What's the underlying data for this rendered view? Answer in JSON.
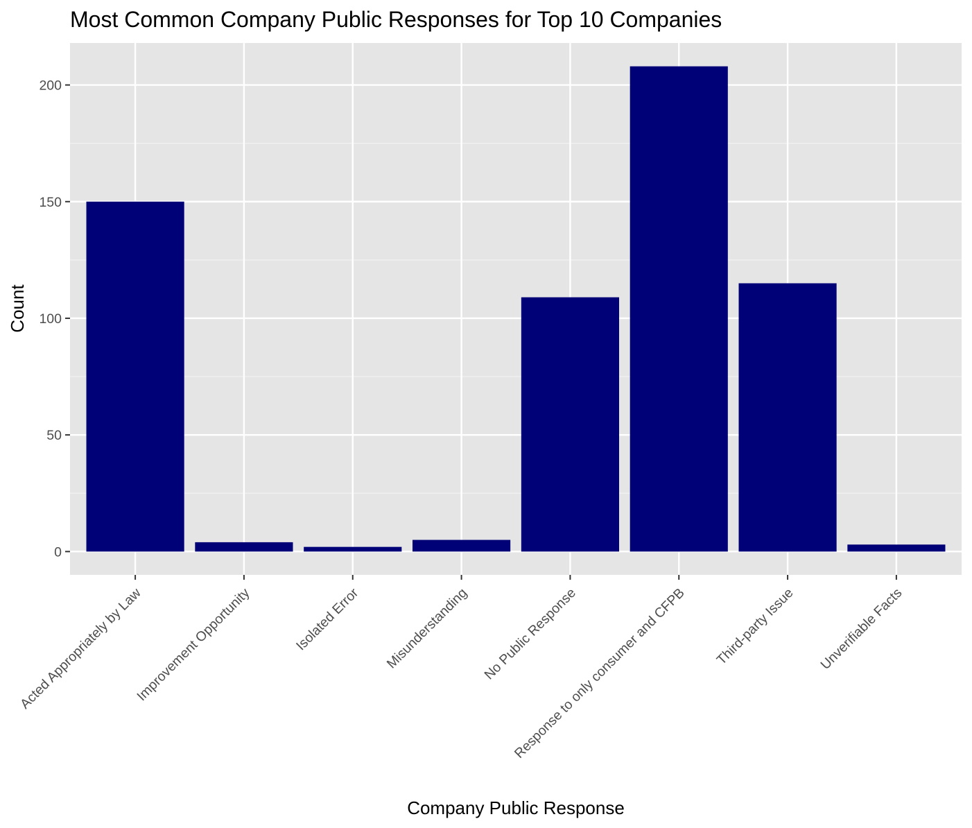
{
  "chart_data": {
    "type": "bar",
    "title": "Most Common Company Public Responses for Top 10 Companies",
    "xlabel": "Company Public Response",
    "ylabel": "Count",
    "categories": [
      "Acted Appropriately by Law",
      "Improvement Opportunity",
      "Isolated Error",
      "Misunderstanding",
      "No Public Response",
      "Response to only consumer and CFPB",
      "Third-party Issue",
      "Unverifiable Facts"
    ],
    "values": [
      150,
      4,
      2,
      5,
      109,
      208,
      115,
      3
    ],
    "ylim": [
      -10,
      218
    ],
    "yticks": [
      0,
      50,
      100,
      150,
      200
    ],
    "grid": true,
    "legend": "none",
    "colors": {
      "bar": "#000077",
      "panel_background": "#e5e5e5",
      "grid_major": "#ffffff",
      "grid_minor": "#f2f2f2",
      "tick_text": "#4d4d4d",
      "text": "#000000"
    }
  }
}
